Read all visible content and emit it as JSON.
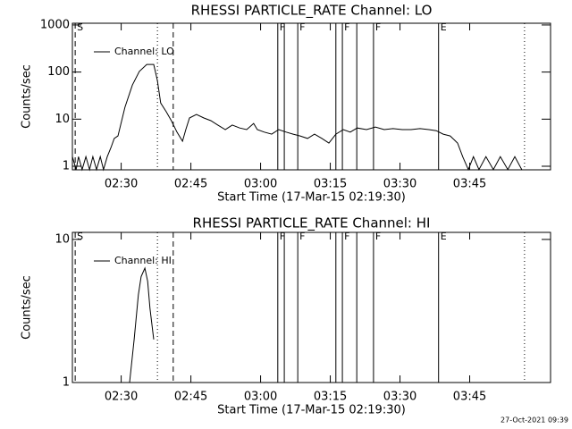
{
  "chart_data": [
    {
      "type": "line",
      "title": "RHESSI PARTICLE_RATE Channel: LO",
      "x_label": "Start Time (17-Mar-15 02:19:30)",
      "y_label": "Counts/sec",
      "log_y": true,
      "xlim": [
        0,
        102.9
      ],
      "ylim": [
        0.84,
        1088
      ],
      "xticks": [
        {
          "value": 10.5,
          "label": "02:30"
        },
        {
          "value": 25.5,
          "label": "02:45"
        },
        {
          "value": 40.5,
          "label": "03:00"
        },
        {
          "value": 55.5,
          "label": "03:15"
        },
        {
          "value": 70.5,
          "label": "03:30"
        },
        {
          "value": 85.5,
          "label": "03:45"
        }
      ],
      "yticks": [
        1,
        10,
        100,
        1000
      ],
      "x": [
        0,
        0.8,
        1.3,
        2.1,
        2.9,
        3.7,
        4.4,
        5.2,
        6.0,
        6.7,
        7.5,
        8.3,
        9.0,
        9.8,
        11.3,
        12.9,
        14.4,
        16.0,
        17.5,
        18.3,
        19.0,
        20.2,
        21.3,
        22.5,
        23.7,
        24.4,
        25.2,
        26.7,
        28.3,
        29.8,
        31.3,
        32.9,
        34.4,
        36.0,
        37.5,
        39.0,
        39.8,
        41.3,
        42.9,
        44.4,
        46.0,
        47.5,
        49.0,
        50.6,
        52.1,
        53.7,
        55.2,
        56.7,
        58.3,
        59.8,
        61.3,
        63.3,
        65.2,
        67.1,
        69.0,
        71.0,
        72.9,
        74.8,
        76.7,
        78.3,
        79.8,
        81.3,
        82.9,
        84.0,
        85.2,
        86.3,
        87.5,
        89.0,
        90.6,
        92.1,
        93.7,
        95.2,
        96.7
      ],
      "series": [
        {
          "name": "Channel: LO",
          "color": "#000000",
          "values": [
            1.6,
            0.85,
            1.6,
            0.85,
            1.6,
            0.85,
            1.6,
            0.85,
            1.6,
            0.85,
            1.6,
            2.5,
            3.9,
            4.4,
            17.9,
            53,
            103,
            145,
            145,
            66,
            22,
            14.4,
            9.3,
            5.3,
            3.4,
            6,
            10.6,
            12.6,
            10.6,
            9.3,
            7.5,
            6,
            7.5,
            6.5,
            6,
            8.1,
            6,
            5.3,
            4.8,
            6,
            5.3,
            4.8,
            4.4,
            3.9,
            4.8,
            3.9,
            3.1,
            4.8,
            6,
            5.3,
            6.5,
            6,
            6.8,
            6,
            6.3,
            6,
            6,
            6.3,
            6,
            5.7,
            4.8,
            4.4,
            3.1,
            1.6,
            0.85,
            1.6,
            0.85,
            1.6,
            0.85,
            1.6,
            0.85,
            1.6,
            0.85
          ]
        }
      ],
      "vlines": [
        {
          "x": 0.6,
          "style": "dashed",
          "label": "S"
        },
        {
          "x": 18.3,
          "style": "dotted"
        },
        {
          "x": 21.7,
          "style": "dashed"
        },
        {
          "x": 44.2,
          "style": "solid",
          "label": "F"
        },
        {
          "x": 45.6,
          "style": "solid"
        },
        {
          "x": 48.5,
          "style": "solid",
          "label": "F"
        },
        {
          "x": 56.7,
          "style": "solid"
        },
        {
          "x": 58.1,
          "style": "solid",
          "label": "F"
        },
        {
          "x": 61.2,
          "style": "solid"
        },
        {
          "x": 64.8,
          "style": "solid",
          "label": "F"
        },
        {
          "x": 78.8,
          "style": "solid",
          "label": "E"
        },
        {
          "x": 97.3,
          "style": "dotted"
        }
      ]
    },
    {
      "type": "line",
      "title": "RHESSI PARTICLE_RATE Channel: HI",
      "x_label": "Start Time (17-Mar-15 02:19:30)",
      "y_label": "Counts/sec",
      "log_y": true,
      "xlim": [
        0,
        102.9
      ],
      "ylim": [
        1,
        11.2
      ],
      "xticks": [
        {
          "value": 10.5,
          "label": "02:30"
        },
        {
          "value": 25.5,
          "label": "02:45"
        },
        {
          "value": 40.5,
          "label": "03:00"
        },
        {
          "value": 55.5,
          "label": "03:15"
        },
        {
          "value": 70.5,
          "label": "03:30"
        },
        {
          "value": 85.5,
          "label": "03:45"
        }
      ],
      "yticks": [
        1,
        10
      ],
      "x": [
        12.3,
        13.3,
        14.2,
        14.8,
        15.6,
        16.2,
        16.7,
        17.5
      ],
      "series": [
        {
          "name": "Channel: HI",
          "color": "#000000",
          "values": [
            1,
            2,
            4.1,
            5.5,
            6.3,
            5.1,
            3.3,
            2
          ]
        }
      ],
      "vlines": [
        {
          "x": 0.6,
          "style": "dashed",
          "label": "S"
        },
        {
          "x": 18.3,
          "style": "dotted"
        },
        {
          "x": 21.7,
          "style": "dashed"
        },
        {
          "x": 44.2,
          "style": "solid",
          "label": "F"
        },
        {
          "x": 45.6,
          "style": "solid"
        },
        {
          "x": 48.5,
          "style": "solid",
          "label": "F"
        },
        {
          "x": 56.7,
          "style": "solid"
        },
        {
          "x": 58.1,
          "style": "solid",
          "label": "F"
        },
        {
          "x": 61.2,
          "style": "solid"
        },
        {
          "x": 64.8,
          "style": "solid",
          "label": "F"
        },
        {
          "x": 78.8,
          "style": "solid",
          "label": "E"
        },
        {
          "x": 97.3,
          "style": "dotted"
        }
      ]
    }
  ],
  "footer": "27-Oct-2021 09:39"
}
